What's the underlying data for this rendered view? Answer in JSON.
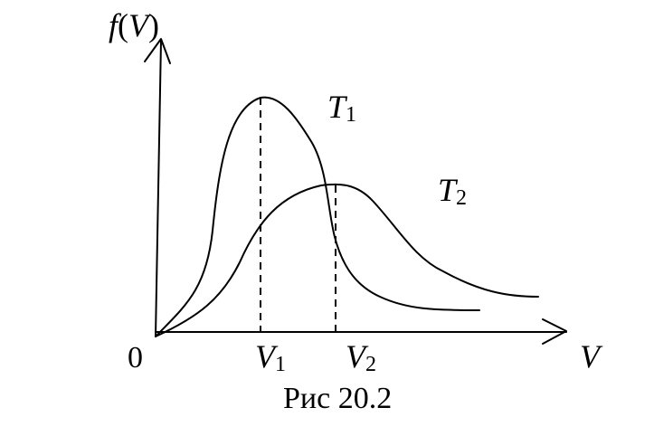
{
  "figure": {
    "y_axis_label": {
      "func": "f",
      "open": "(",
      "arg": "V",
      "close": ")"
    },
    "x_axis_label": "V",
    "origin_label": "0",
    "curves": [
      {
        "name": "T",
        "subscript": "1"
      },
      {
        "name": "T",
        "subscript": "2"
      }
    ],
    "ticks": [
      {
        "name": "V",
        "subscript": "1"
      },
      {
        "name": "V",
        "subscript": "2"
      }
    ],
    "caption": "Рис 20.2",
    "colors": {
      "ink": "#000000",
      "background": "#ffffff"
    }
  }
}
